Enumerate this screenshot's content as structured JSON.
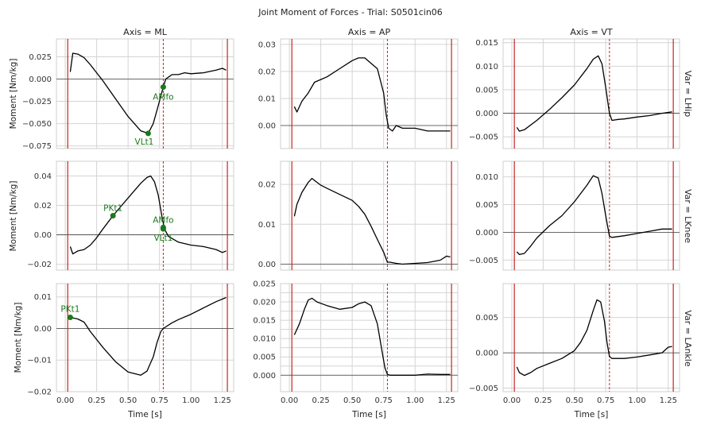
{
  "figure": {
    "title": "Joint Moment of Forces - Trial: S0501cin06",
    "col_titles": [
      "Axis = ML",
      "Axis = AP",
      "Axis = VT"
    ],
    "row_titles": [
      "Var = LHip",
      "Var = LKnee",
      "Var = LAnkle"
    ],
    "ylabel": "Moment [Nm/kg]",
    "xlabel": "Time [s]",
    "colors": {
      "line": "#000000",
      "event_solid": "#cc2222",
      "event_dashed": "#cc2222",
      "marker": "#1a7a1a",
      "grid": "#d4d4d4",
      "zero": "#444444"
    }
  },
  "chart_data": [
    {
      "type": "line",
      "row": "Var = LHip",
      "col": "Axis = ML",
      "ylim": [
        -0.078,
        0.045
      ],
      "yticks": [
        -0.075,
        -0.05,
        -0.025,
        0.0,
        0.025
      ],
      "ytick_labels": [
        "−0.075",
        "−0.050",
        "−0.025",
        "0.000",
        "0.025"
      ],
      "xlim": [
        -0.07,
        1.34
      ],
      "xticks": [
        0,
        0.25,
        0.5,
        0.75,
        1.0,
        1.25
      ],
      "xtick_labels": [
        "0.00",
        "0.25",
        "0.50",
        "0.75",
        "1.00",
        "1.25"
      ],
      "vlines_solid": [
        0.02,
        1.29
      ],
      "vlines_dashed": [
        0.78
      ],
      "x": [
        0.04,
        0.06,
        0.1,
        0.15,
        0.2,
        0.3,
        0.4,
        0.5,
        0.6,
        0.66,
        0.7,
        0.74,
        0.78,
        0.8,
        0.82,
        0.85,
        0.9,
        0.95,
        1.0,
        1.1,
        1.2,
        1.25,
        1.28
      ],
      "y": [
        0.008,
        0.029,
        0.028,
        0.024,
        0.016,
        -0.002,
        -0.022,
        -0.042,
        -0.058,
        -0.061,
        -0.05,
        -0.03,
        -0.009,
        0.0,
        0.002,
        0.005,
        0.005,
        0.007,
        0.006,
        0.007,
        0.01,
        0.012,
        0.01
      ],
      "markers": [
        {
          "label": "AMfo",
          "x": 0.78,
          "y": -0.009
        },
        {
          "label": "VLt1",
          "x": 0.66,
          "y": -0.061
        }
      ]
    },
    {
      "type": "line",
      "row": "Var = LHip",
      "col": "Axis = AP",
      "ylim": [
        -0.0085,
        0.032
      ],
      "yticks": [
        0.0,
        0.01,
        0.02,
        0.03
      ],
      "ytick_labels": [
        "0.00",
        "0.01",
        "0.02",
        "0.03"
      ],
      "xlim": [
        -0.07,
        1.34
      ],
      "xticks": [
        0,
        0.25,
        0.5,
        0.75,
        1.0,
        1.25
      ],
      "xtick_labels": [
        "0.00",
        "0.25",
        "0.50",
        "0.75",
        "1.00",
        "1.25"
      ],
      "vlines_solid": [
        0.02,
        1.29
      ],
      "vlines_dashed": [
        0.78
      ],
      "x": [
        0.04,
        0.06,
        0.1,
        0.15,
        0.2,
        0.25,
        0.3,
        0.4,
        0.5,
        0.55,
        0.6,
        0.65,
        0.7,
        0.75,
        0.77,
        0.79,
        0.82,
        0.85,
        0.9,
        1.0,
        1.1,
        1.2,
        1.28
      ],
      "y": [
        0.007,
        0.005,
        0.009,
        0.012,
        0.016,
        0.017,
        0.018,
        0.021,
        0.024,
        0.025,
        0.025,
        0.023,
        0.021,
        0.012,
        0.004,
        -0.001,
        -0.002,
        0.0,
        -0.001,
        -0.001,
        -0.002,
        -0.002,
        -0.002
      ],
      "markers": []
    },
    {
      "type": "line",
      "row": "Var = LHip",
      "col": "Axis = VT",
      "ylim": [
        -0.0075,
        0.0158
      ],
      "yticks": [
        -0.005,
        0.0,
        0.005,
        0.01,
        0.015
      ],
      "ytick_labels": [
        "−0.005",
        "0.000",
        "0.005",
        "0.010",
        "0.015"
      ],
      "xlim": [
        -0.07,
        1.34
      ],
      "xticks": [
        0,
        0.25,
        0.5,
        0.75,
        1.0,
        1.25
      ],
      "xtick_labels": [
        "0.00",
        "0.25",
        "0.50",
        "0.75",
        "1.00",
        "1.25"
      ],
      "vlines_solid": [
        0.02,
        1.29
      ],
      "vlines_dashed": [
        0.78
      ],
      "x": [
        0.04,
        0.06,
        0.1,
        0.2,
        0.3,
        0.4,
        0.5,
        0.6,
        0.65,
        0.69,
        0.72,
        0.75,
        0.78,
        0.8,
        0.85,
        0.9,
        1.0,
        1.1,
        1.2,
        1.28
      ],
      "y": [
        -0.003,
        -0.0038,
        -0.0035,
        -0.0015,
        0.0008,
        0.0033,
        0.006,
        0.0095,
        0.0115,
        0.0122,
        0.0105,
        0.0055,
        0.0,
        -0.0015,
        -0.0013,
        -0.0012,
        -0.0008,
        -0.0005,
        0.0,
        0.0003
      ],
      "markers": []
    },
    {
      "type": "line",
      "row": "Var = LKnee",
      "col": "Axis = ML",
      "ylim": [
        -0.024,
        0.05
      ],
      "yticks": [
        -0.02,
        0.0,
        0.02,
        0.04
      ],
      "ytick_labels": [
        "−0.02",
        "0.00",
        "0.02",
        "0.04"
      ],
      "xlim": [
        -0.07,
        1.34
      ],
      "xticks": [
        0,
        0.25,
        0.5,
        0.75,
        1.0,
        1.25
      ],
      "xtick_labels": [
        "0.00",
        "0.25",
        "0.50",
        "0.75",
        "1.00",
        "1.25"
      ],
      "vlines_solid": [
        0.02,
        1.29
      ],
      "vlines_dashed": [
        0.78
      ],
      "x": [
        0.04,
        0.06,
        0.1,
        0.15,
        0.2,
        0.25,
        0.3,
        0.38,
        0.45,
        0.52,
        0.6,
        0.65,
        0.68,
        0.71,
        0.74,
        0.77,
        0.79,
        0.82,
        0.9,
        1.0,
        1.1,
        1.2,
        1.25,
        1.28
      ],
      "y": [
        -0.008,
        -0.013,
        -0.011,
        -0.01,
        -0.007,
        -0.002,
        0.004,
        0.013,
        0.02,
        0.027,
        0.035,
        0.039,
        0.04,
        0.036,
        0.027,
        0.012,
        0.004,
        -0.001,
        -0.005,
        -0.007,
        -0.008,
        -0.01,
        -0.012,
        -0.011
      ],
      "markers": [
        {
          "label": "PKt1",
          "x": 0.38,
          "y": 0.013
        },
        {
          "label": "AMfo",
          "x": 0.78,
          "y": 0.005
        },
        {
          "label": "VLt1",
          "x": 0.78,
          "y": 0.004
        }
      ]
    },
    {
      "type": "line",
      "row": "Var = LKnee",
      "col": "Axis = AP",
      "ylim": [
        -0.0015,
        0.0258
      ],
      "yticks": [
        0.0,
        0.01,
        0.02
      ],
      "ytick_labels": [
        "0.00",
        "0.01",
        "0.02"
      ],
      "xlim": [
        -0.07,
        1.34
      ],
      "xticks": [
        0,
        0.25,
        0.5,
        0.75,
        1.0,
        1.25
      ],
      "xtick_labels": [
        "0.00",
        "0.25",
        "0.50",
        "0.75",
        "1.00",
        "1.25"
      ],
      "vlines_solid": [
        0.02,
        1.29
      ],
      "vlines_dashed": [
        0.78
      ],
      "x": [
        0.04,
        0.06,
        0.1,
        0.15,
        0.18,
        0.2,
        0.25,
        0.3,
        0.4,
        0.5,
        0.55,
        0.6,
        0.65,
        0.7,
        0.75,
        0.78,
        0.8,
        0.85,
        0.9,
        1.0,
        1.1,
        1.2,
        1.25,
        1.28
      ],
      "y": [
        0.012,
        0.015,
        0.018,
        0.0205,
        0.0215,
        0.021,
        0.0198,
        0.019,
        0.0175,
        0.016,
        0.0145,
        0.0125,
        0.0095,
        0.0062,
        0.003,
        0.0005,
        0.0005,
        0.0002,
        0.0,
        0.0002,
        0.0004,
        0.001,
        0.002,
        0.0018
      ],
      "markers": []
    },
    {
      "type": "line",
      "row": "Var = LKnee",
      "col": "Axis = VT",
      "ylim": [
        -0.0068,
        0.0128
      ],
      "yticks": [
        -0.005,
        0.0,
        0.005,
        0.01
      ],
      "ytick_labels": [
        "−0.005",
        "0.000",
        "0.005",
        "0.010"
      ],
      "xlim": [
        -0.07,
        1.34
      ],
      "xticks": [
        0,
        0.25,
        0.5,
        0.75,
        1.0,
        1.25
      ],
      "xtick_labels": [
        "0.00",
        "0.25",
        "0.50",
        "0.75",
        "1.00",
        "1.25"
      ],
      "vlines_solid": [
        0.02,
        1.29
      ],
      "vlines_dashed": [
        0.78
      ],
      "x": [
        0.04,
        0.06,
        0.1,
        0.15,
        0.2,
        0.3,
        0.4,
        0.5,
        0.6,
        0.65,
        0.69,
        0.72,
        0.75,
        0.77,
        0.78,
        0.8,
        0.9,
        1.0,
        1.1,
        1.2,
        1.28
      ],
      "y": [
        -0.0035,
        -0.004,
        -0.0038,
        -0.0025,
        -0.001,
        0.0012,
        0.003,
        0.0055,
        0.0085,
        0.0102,
        0.0098,
        0.007,
        0.003,
        0.0005,
        -0.0007,
        -0.0009,
        -0.0006,
        -0.0002,
        0.0002,
        0.0006,
        0.0006
      ],
      "markers": []
    },
    {
      "type": "line",
      "row": "Var = LAnkle",
      "col": "Axis = ML",
      "ylim": [
        -0.02,
        0.0142
      ],
      "yticks": [
        -0.02,
        -0.01,
        0.0,
        0.01
      ],
      "ytick_labels": [
        "−0.02",
        "−0.01",
        "0.00",
        "0.01"
      ],
      "xlim": [
        -0.07,
        1.34
      ],
      "xticks": [
        0,
        0.25,
        0.5,
        0.75,
        1.0,
        1.25
      ],
      "xtick_labels": [
        "0.00",
        "0.25",
        "0.50",
        "0.75",
        "1.00",
        "1.25"
      ],
      "vlines_solid": [
        0.02,
        1.29
      ],
      "vlines_dashed": [
        0.78
      ],
      "x": [
        0.04,
        0.1,
        0.15,
        0.2,
        0.3,
        0.4,
        0.5,
        0.6,
        0.65,
        0.7,
        0.73,
        0.76,
        0.78,
        0.85,
        0.9,
        1.0,
        1.1,
        1.2,
        1.28
      ],
      "y": [
        0.0035,
        0.003,
        0.002,
        -0.001,
        -0.006,
        -0.0105,
        -0.0138,
        -0.0148,
        -0.0135,
        -0.009,
        -0.0045,
        -0.001,
        0.0,
        0.0018,
        0.0028,
        0.0045,
        0.0065,
        0.0085,
        0.0098
      ],
      "markers": [
        {
          "label": "PKt1",
          "x": 0.04,
          "y": 0.0035
        }
      ]
    },
    {
      "type": "line",
      "row": "Var = LAnkle",
      "col": "Axis = AP",
      "ylim": [
        -0.0045,
        0.025
      ],
      "yticks": [
        0.0,
        0.0025,
        0.005,
        0.0075,
        0.01,
        0.0125,
        0.015,
        0.0175,
        0.02,
        0.0225,
        0.025
      ],
      "ytick_labels": [
        "0.000",
        "0.0025",
        "0.005",
        "0.0075",
        "0.010",
        "0.0125",
        "0.015",
        "0.0175",
        "0.020",
        "0.0225",
        "0.025"
      ],
      "ytick_show": [
        "0.000",
        "",
        "0.005",
        "",
        "0.010",
        "",
        "0.015",
        "",
        "0.020",
        "",
        "0.025"
      ],
      "xlim": [
        -0.07,
        1.34
      ],
      "xticks": [
        0,
        0.25,
        0.5,
        0.75,
        1.0,
        1.25
      ],
      "xtick_labels": [
        "0.00",
        "0.25",
        "0.50",
        "0.75",
        "1.00",
        "1.25"
      ],
      "vlines_solid": [
        0.02,
        1.29
      ],
      "vlines_dashed": [
        0.78
      ],
      "x": [
        0.04,
        0.08,
        0.12,
        0.15,
        0.18,
        0.22,
        0.3,
        0.4,
        0.5,
        0.55,
        0.6,
        0.65,
        0.7,
        0.74,
        0.76,
        0.78,
        0.8,
        0.9,
        1.0,
        1.1,
        1.2,
        1.28
      ],
      "y": [
        0.011,
        0.014,
        0.018,
        0.0205,
        0.021,
        0.02,
        0.019,
        0.018,
        0.0185,
        0.0195,
        0.02,
        0.019,
        0.014,
        0.006,
        0.002,
        0.0002,
        0.0,
        0.0,
        0.0,
        0.0003,
        0.0002,
        0.0002
      ],
      "markers": []
    },
    {
      "type": "line",
      "row": "Var = LAnkle",
      "col": "Axis = VT",
      "ylim": [
        -0.0055,
        0.0098
      ],
      "yticks": [
        -0.005,
        0.0,
        0.005
      ],
      "ytick_labels": [
        "−0.005",
        "0.000",
        "0.005"
      ],
      "xlim": [
        -0.07,
        1.34
      ],
      "xticks": [
        0,
        0.25,
        0.5,
        0.75,
        1.0,
        1.25
      ],
      "xtick_labels": [
        "0.00",
        "0.25",
        "0.50",
        "0.75",
        "1.00",
        "1.25"
      ],
      "vlines_solid": [
        0.02,
        1.29
      ],
      "vlines_dashed": [
        0.78
      ],
      "x": [
        0.04,
        0.06,
        0.1,
        0.15,
        0.2,
        0.3,
        0.4,
        0.5,
        0.55,
        0.6,
        0.65,
        0.68,
        0.71,
        0.74,
        0.76,
        0.78,
        0.8,
        0.9,
        1.0,
        1.1,
        1.2,
        1.25,
        1.28
      ],
      "y": [
        -0.002,
        -0.0028,
        -0.0032,
        -0.0028,
        -0.0022,
        -0.0015,
        -0.0008,
        0.0003,
        0.0015,
        0.0032,
        0.006,
        0.0075,
        0.0072,
        0.0045,
        0.0015,
        -0.0005,
        -0.0008,
        -0.0008,
        -0.0006,
        -0.0003,
        0.0,
        0.0008,
        0.0009
      ],
      "markers": []
    }
  ]
}
